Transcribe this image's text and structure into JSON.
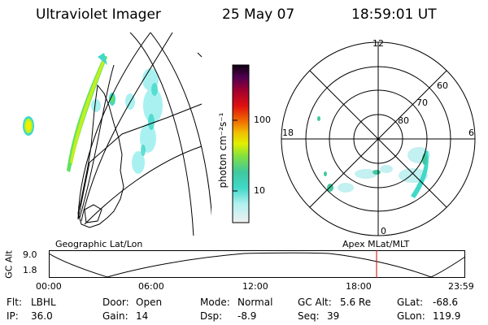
{
  "header": {
    "instrument": "Ultraviolet Imager",
    "date": "25 May 07",
    "time": "18:59:01 UT"
  },
  "colorbar": {
    "unit_label": "photon cm⁻²s⁻¹",
    "tick_100": "100",
    "tick_10": "10",
    "scale": "log",
    "colors": [
      "#e0e0e0",
      "#a0f0f0",
      "#40d8c8",
      "#20c8a0",
      "#60e060",
      "#c0f020",
      "#f0f000",
      "#f0b000",
      "#f06000",
      "#e01010",
      "#a0002a",
      "#600040",
      "#300050",
      "#100010"
    ]
  },
  "projections": {
    "left_label": "Geographic Lat/Lon",
    "right_label": "Apex MLat/MLT"
  },
  "polar": {
    "mlt_top": "12",
    "mlt_left": "18",
    "mlt_right": "6",
    "mlt_bottom": "0",
    "lat_60": "60",
    "lat_70": "70",
    "lat_80": "80"
  },
  "altitude_plot": {
    "ylabel": "GC Alt",
    "y_max": "9.0",
    "y_min": "1.8",
    "time_ticks": [
      "00:00",
      "06:00",
      "12:00",
      "18:00",
      "23:59"
    ],
    "current_time_marker": "18:59"
  },
  "info": {
    "flt_label": "Flt:",
    "flt_value": "LBHL",
    "ip_label": "IP:",
    "ip_value": "36.0",
    "door_label": "Door:",
    "door_value": "Open",
    "gain_label": "Gain:",
    "gain_value": "14",
    "mode_label": "Mode:",
    "mode_value": "Normal",
    "dsp_label": "Dsp:",
    "dsp_value": "-8.9",
    "gcalt_label": "GC Alt:",
    "gcalt_value": "5.6 Re",
    "seq_label": "Seq:",
    "seq_value": "39",
    "glat_label": "GLat:",
    "glat_value": "-68.6",
    "glon_label": "GLon:",
    "glon_value": "119.9"
  }
}
